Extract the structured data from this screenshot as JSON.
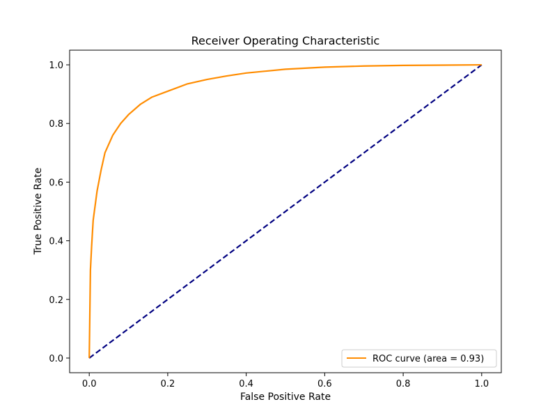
{
  "chart_data": {
    "type": "line",
    "title": "Receiver Operating Characteristic",
    "xlabel": "False Positive Rate",
    "ylabel": "True Positive Rate",
    "xlim": [
      -0.05,
      1.05
    ],
    "ylim": [
      -0.05,
      1.05
    ],
    "xticks": [
      "0.0",
      "0.2",
      "0.4",
      "0.6",
      "0.8",
      "1.0"
    ],
    "yticks": [
      "0.0",
      "0.2",
      "0.4",
      "0.6",
      "0.8",
      "1.0"
    ],
    "grid": false,
    "legend_position": "lower-right",
    "series": [
      {
        "name": "ROC curve (area = 0.93)",
        "color": "#ff8c00",
        "style": "solid",
        "x": [
          0.0,
          0.003,
          0.006,
          0.01,
          0.015,
          0.02,
          0.03,
          0.04,
          0.05,
          0.06,
          0.08,
          0.1,
          0.13,
          0.16,
          0.2,
          0.25,
          0.3,
          0.35,
          0.4,
          0.5,
          0.6,
          0.7,
          0.8,
          0.9,
          1.0
        ],
        "y": [
          0.0,
          0.3,
          0.38,
          0.47,
          0.52,
          0.57,
          0.64,
          0.7,
          0.73,
          0.76,
          0.8,
          0.83,
          0.865,
          0.89,
          0.91,
          0.935,
          0.95,
          0.962,
          0.972,
          0.985,
          0.992,
          0.996,
          0.998,
          0.999,
          1.0
        ]
      },
      {
        "name": "",
        "color": "#000080",
        "style": "dashed",
        "x": [
          0.0,
          1.0
        ],
        "y": [
          0.0,
          1.0
        ]
      }
    ]
  }
}
